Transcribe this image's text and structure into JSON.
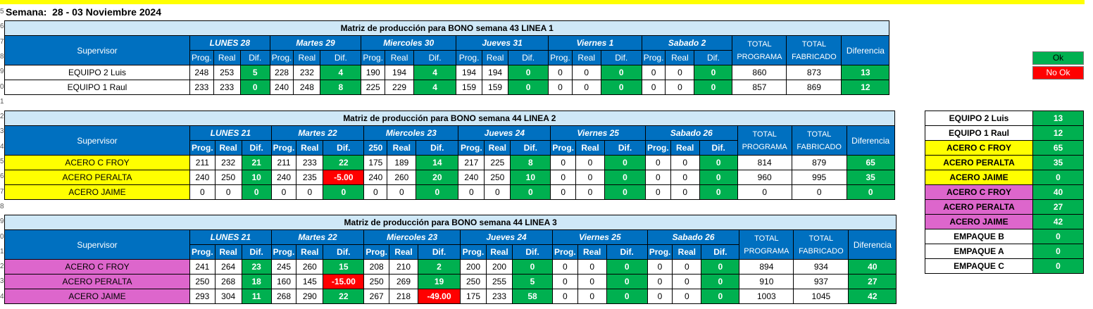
{
  "week_title": "Semana:  28 - 03 Noviembre 2024",
  "row_numbers": [
    "5",
    "6",
    "7",
    "8",
    "9",
    "0",
    "1",
    "2",
    "3",
    "4",
    "5",
    "6",
    "7",
    "8",
    "9",
    "0",
    "1",
    "2",
    "3",
    "4"
  ],
  "labels": {
    "supervisor": "Supervisor",
    "prog": "Prog.",
    "real": "Real",
    "dif": "Dif.",
    "total_programa_1": "TOTAL",
    "total_programa_2": "PROGRAMA",
    "total_fabricado_1": "TOTAL",
    "total_fabricado_2": "FABRICADO",
    "diferencia": "Diferencia"
  },
  "tables": [
    {
      "title": "Matriz de producción para BONO semana 43 LINEA 1",
      "days": [
        "LUNES 28",
        "Martes  29",
        "Miercoles 30",
        "Jueves 31",
        "Viernes 1",
        "Sabado 2"
      ],
      "subheaders": [
        "Prog.",
        "Real",
        "Dif.",
        "Prog.",
        "Real",
        "Dif.",
        "Prog.",
        "Real",
        "Dif.",
        "Prog.",
        "Real",
        "Dif.",
        "Prog.",
        "Real",
        "Dif.",
        "Prog.",
        "Real",
        "Dif."
      ],
      "rows": [
        {
          "name": "EQUIPO 2 Luis",
          "bg": "white",
          "cells": [
            "248",
            "253",
            "5",
            "228",
            "232",
            "4",
            "190",
            "194",
            "4",
            "194",
            "194",
            "0",
            "0",
            "0",
            "0",
            "0",
            "0",
            "0"
          ],
          "total_programa": "860",
          "total_fabricado": "873",
          "diferencia": "13"
        },
        {
          "name": "EQUIPO 1 Raul",
          "bg": "white",
          "cells": [
            "233",
            "233",
            "0",
            "240",
            "248",
            "8",
            "225",
            "229",
            "4",
            "159",
            "159",
            "0",
            "0",
            "0",
            "0",
            "0",
            "0",
            "0"
          ],
          "total_programa": "857",
          "total_fabricado": "869",
          "diferencia": "12"
        }
      ]
    },
    {
      "title": "Matriz de producción para BONO semana 44 LINEA 2",
      "days": [
        "LUNES 21",
        "Martes  22",
        "Miercoles 23",
        "Jueves 24",
        "Viernes 25",
        "Sabado 26"
      ],
      "subheaders": [
        "Prog.",
        "Real",
        "Dif.",
        "Prog.",
        "Real",
        "Dif.",
        "250",
        "Real",
        "Dif.",
        "Prog.",
        "Real",
        "Dif.",
        "Prog.",
        "Real",
        "Dif.",
        "Prog.",
        "Real",
        "Dif."
      ],
      "rows": [
        {
          "name": "ACERO C FROY",
          "bg": "yellow",
          "cells": [
            "211",
            "232",
            "21",
            "211",
            "233",
            "22",
            "175",
            "189",
            "14",
            "217",
            "225",
            "8",
            "0",
            "0",
            "0",
            "0",
            "0",
            "0"
          ],
          "total_programa": "814",
          "total_fabricado": "879",
          "diferencia": "65"
        },
        {
          "name": "ACERO PERALTA",
          "bg": "yellow",
          "cells": [
            "240",
            "250",
            "10",
            "240",
            "235",
            "-5.00",
            "240",
            "260",
            "20",
            "240",
            "250",
            "10",
            "0",
            "0",
            "0",
            "0",
            "0",
            "0"
          ],
          "total_programa": "960",
          "total_fabricado": "995",
          "diferencia": "35"
        },
        {
          "name": "ACERO JAIME",
          "bg": "yellow",
          "cells": [
            "0",
            "0",
            "0",
            "0",
            "0",
            "0",
            "0",
            "0",
            "0",
            "0",
            "0",
            "0",
            "0",
            "0",
            "0",
            "0",
            "0",
            "0"
          ],
          "total_programa": "0",
          "total_fabricado": "0",
          "diferencia": "0"
        }
      ]
    },
    {
      "title": "Matriz de producción para BONO semana 44 LINEA 3",
      "days": [
        "LUNES 21",
        "Martes  22",
        "Miercoles 23",
        "Jueves 24",
        "Viernes 25",
        "Sabado 26"
      ],
      "subheaders": [
        "Prog.",
        "Real",
        "Dif.",
        "Prog.",
        "Real",
        "Dif.",
        "Prog.",
        "Real",
        "Dif.",
        "Prog.",
        "Real",
        "Dif.",
        "Prog.",
        "Real",
        "Dif.",
        "Prog.",
        "Real",
        "Dif."
      ],
      "rows": [
        {
          "name": "ACERO C FROY",
          "bg": "pink",
          "cells": [
            "241",
            "264",
            "23",
            "245",
            "260",
            "15",
            "208",
            "210",
            "2",
            "200",
            "200",
            "0",
            "0",
            "0",
            "0",
            "0",
            "0",
            "0"
          ],
          "total_programa": "894",
          "total_fabricado": "934",
          "diferencia": "40"
        },
        {
          "name": "ACERO PERALTA",
          "bg": "pink",
          "cells": [
            "250",
            "268",
            "18",
            "160",
            "145",
            "-15.00",
            "250",
            "269",
            "19",
            "250",
            "255",
            "5",
            "0",
            "0",
            "0",
            "0",
            "0",
            "0"
          ],
          "total_programa": "910",
          "total_fabricado": "937",
          "diferencia": "27"
        },
        {
          "name": "ACERO JAIME",
          "bg": "pink",
          "cells": [
            "293",
            "304",
            "11",
            "268",
            "290",
            "22",
            "267",
            "218",
            "-49.00",
            "175",
            "233",
            "58",
            "0",
            "0",
            "0",
            "0",
            "0",
            "0"
          ],
          "total_programa": "1003",
          "total_fabricado": "1045",
          "diferencia": "42"
        }
      ]
    }
  ],
  "legend": {
    "ok": "Ok",
    "no_ok": "No Ok"
  },
  "summary": [
    {
      "name": "EQUIPO 2 Luis",
      "value": "13",
      "bg": "white"
    },
    {
      "name": "EQUIPO 1 Raul",
      "value": "12",
      "bg": "white"
    },
    {
      "name": "ACERO C FROY",
      "value": "65",
      "bg": "yellow"
    },
    {
      "name": "ACERO PERALTA",
      "value": "35",
      "bg": "yellow"
    },
    {
      "name": "ACERO JAIME",
      "value": "0",
      "bg": "yellow"
    },
    {
      "name": "ACERO C FROY",
      "value": "40",
      "bg": "pink"
    },
    {
      "name": "ACERO PERALTA",
      "value": "27",
      "bg": "pink"
    },
    {
      "name": "ACERO JAIME",
      "value": "42",
      "bg": "pink"
    },
    {
      "name": "EMPAQUE B",
      "value": "0",
      "bg": "white"
    },
    {
      "name": "EMPAQUE A",
      "value": "0",
      "bg": "white"
    },
    {
      "name": "EMPAQUE C",
      "value": "0",
      "bg": "white"
    }
  ],
  "colors": {
    "green": "#00b050",
    "red": "#ff0000",
    "blue_header": "#0070c0",
    "title_blue": "#cfe8f7",
    "yellow": "#ffff00",
    "pink": "#dd66cc"
  }
}
